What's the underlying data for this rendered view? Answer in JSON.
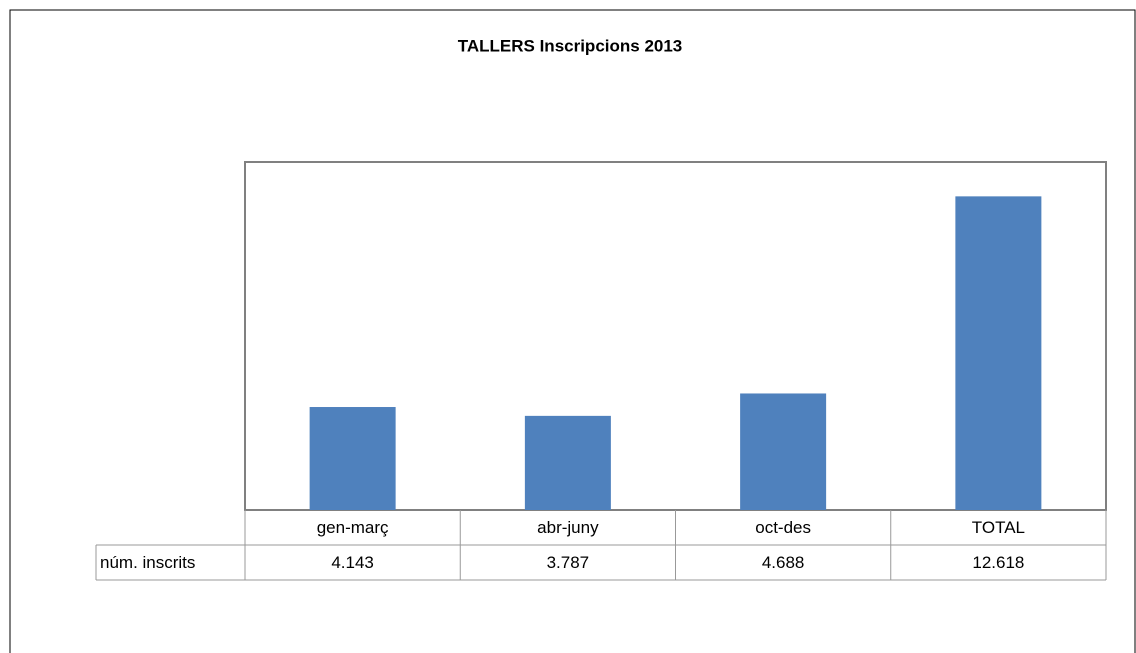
{
  "chart_data": {
    "type": "bar",
    "title": "TALLERS Inscripcions 2013",
    "categories": [
      "gen-març",
      "abr-juny",
      "oct-des",
      "TOTAL"
    ],
    "series": [
      {
        "name": "núm. inscrits",
        "color": "#4f81bd",
        "values": [
          4143,
          3787,
          4688,
          12618
        ],
        "value_labels": [
          "4.143",
          "3.787",
          "4.688",
          "12.618"
        ]
      }
    ],
    "ylim": [
      0,
      14000
    ]
  }
}
